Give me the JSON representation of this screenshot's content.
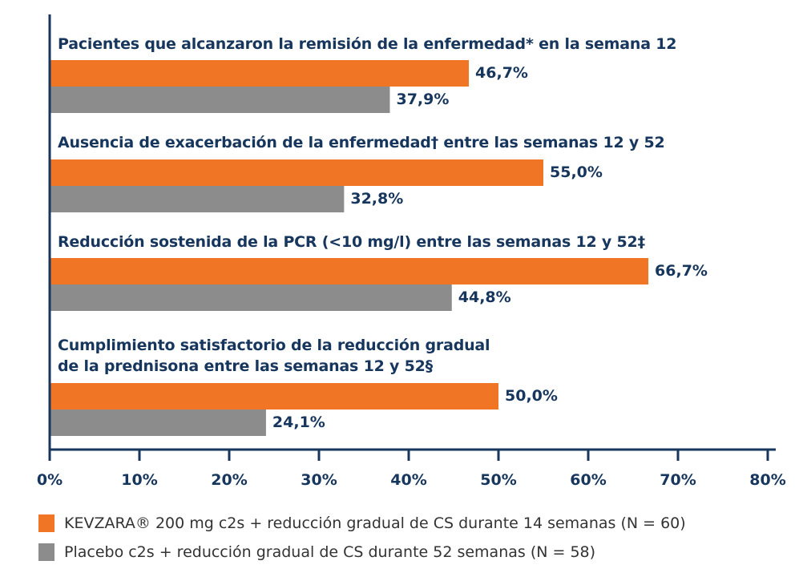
{
  "chart_data": {
    "type": "bar",
    "orientation": "horizontal",
    "title": "",
    "xlabel": "",
    "ylabel": "",
    "xlim": [
      0,
      80
    ],
    "x_ticks": [
      "0%",
      "10%",
      "20%",
      "30%",
      "40%",
      "50%",
      "60%",
      "70%",
      "80%"
    ],
    "grid": false,
    "legend_position": "bottom-left",
    "categories": [
      {
        "line1": "Pacientes que alcanzaron la remisión de la enfermedad* en la semana 12",
        "line2": ""
      },
      {
        "line1": "Ausencia de exacerbación de la enfermedad† entre las semanas 12 y 52",
        "line2": ""
      },
      {
        "line1": "Reducción sostenida de la PCR (<10 mg/l) entre las semanas 12 y 52‡",
        "line2": ""
      },
      {
        "line1": "Cumplimiento satisfactorio de la reducción gradual",
        "line2": "de la prednisona entre las semanas 12 y 52§"
      }
    ],
    "series": [
      {
        "name": "KEVZARA® 200 mg c2s + reducción gradual de CS durante 14 semanas (N = 60)",
        "color": "#f07524",
        "values": [
          46.7,
          55.0,
          66.7,
          50.0
        ],
        "labels": [
          "46,7%",
          "55,0%",
          "66,7%",
          "50,0%"
        ]
      },
      {
        "name": "Placebo c2s + reducción gradual de CS durante 52 semanas (N = 58)",
        "color": "#8c8c8c",
        "values": [
          37.9,
          32.8,
          44.8,
          24.1
        ],
        "labels": [
          "37,9%",
          "32,8%",
          "44,8%",
          "24,1%"
        ]
      }
    ],
    "axis_color": "#17365d"
  }
}
